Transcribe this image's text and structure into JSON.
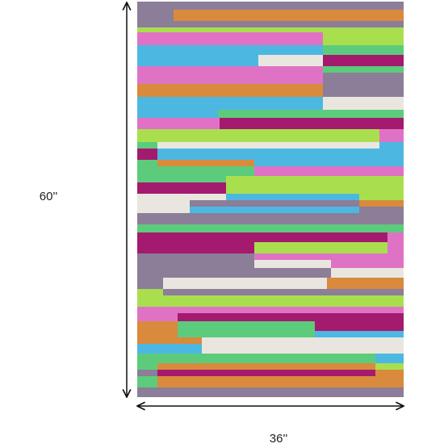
{
  "dimensions": {
    "height_label": "60''",
    "width_label": "36''"
  }
}
